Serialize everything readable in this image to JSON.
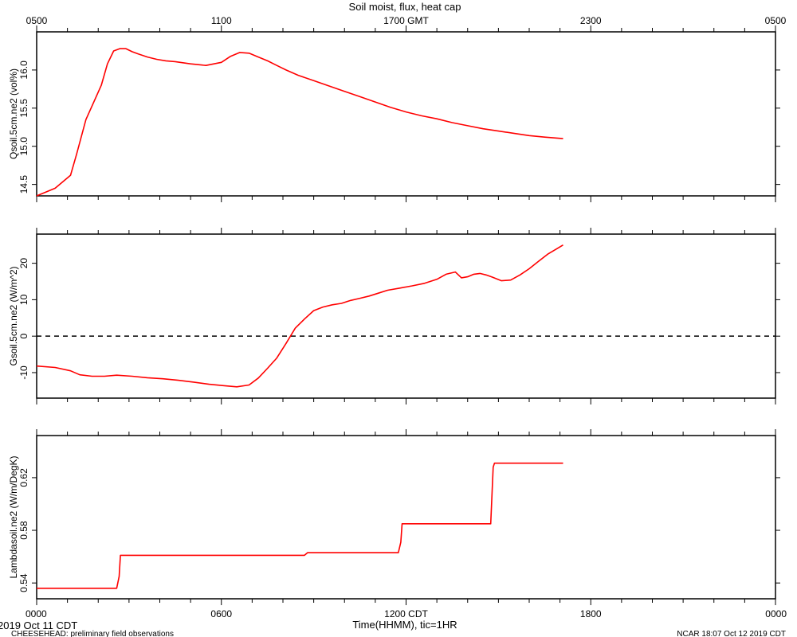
{
  "chart_data": [
    {
      "type": "line",
      "title": "Soil moist, flux, heat cap",
      "top_axis": {
        "tick_labels": [
          "0500",
          "1100",
          "1700 GMT",
          "2300",
          "0500"
        ],
        "tick_hours": [
          5,
          11,
          17,
          23,
          29
        ]
      },
      "xlabel": "",
      "ylabel": "Qsoil.5cm.ne2 (vol%)",
      "ylim": [
        14.35,
        16.5
      ],
      "yticks": [
        14.5,
        15.0,
        15.5,
        16.0
      ],
      "ytick_labels": [
        "14.5",
        "15.0",
        "15.5",
        "16.0"
      ],
      "color": "#ff0000",
      "series": [
        {
          "x": [
            0.0,
            0.6,
            1.1,
            1.3,
            1.6,
            1.9,
            2.1,
            2.3,
            2.5,
            2.7,
            2.9,
            3.1,
            3.3,
            3.6,
            3.9,
            4.2,
            4.5,
            5.0,
            5.5,
            6.0,
            6.3,
            6.6,
            6.9,
            7.2,
            7.5,
            7.8,
            8.1,
            8.5,
            9.0,
            9.5,
            10.0,
            10.5,
            11.0,
            11.5,
            12.0,
            12.5,
            13.0,
            13.5,
            14.0,
            14.5,
            15.0,
            15.5,
            16.0,
            16.5,
            17.1
          ],
          "y": [
            14.35,
            14.45,
            14.62,
            14.9,
            15.35,
            15.62,
            15.8,
            16.08,
            16.25,
            16.28,
            16.28,
            16.24,
            16.21,
            16.17,
            16.14,
            16.12,
            16.11,
            16.08,
            16.06,
            16.1,
            16.18,
            16.23,
            16.22,
            16.17,
            16.12,
            16.06,
            16.0,
            15.93,
            15.86,
            15.79,
            15.72,
            15.65,
            15.58,
            15.51,
            15.45,
            15.4,
            15.36,
            15.31,
            15.27,
            15.23,
            15.2,
            15.17,
            15.14,
            15.12,
            15.1
          ]
        }
      ]
    },
    {
      "type": "line",
      "title": "",
      "xlabel": "",
      "ylabel": "Gsoil.5cm.ne2 (W/m^2)",
      "ylim": [
        -17,
        28
      ],
      "yticks": [
        -10,
        0,
        10,
        20
      ],
      "ytick_labels": [
        "-10",
        "0",
        "10",
        "20"
      ],
      "zero_line": true,
      "color": "#ff0000",
      "series": [
        {
          "x": [
            0.0,
            0.6,
            1.1,
            1.4,
            1.8,
            2.2,
            2.6,
            3.1,
            3.6,
            4.1,
            4.6,
            5.1,
            5.6,
            6.1,
            6.5,
            6.9,
            7.2,
            7.5,
            7.8,
            8.1,
            8.4,
            8.7,
            9.0,
            9.3,
            9.6,
            9.9,
            10.2,
            10.5,
            10.8,
            11.1,
            11.4,
            11.8,
            12.2,
            12.6,
            13.0,
            13.3,
            13.6,
            13.8,
            14.0,
            14.2,
            14.4,
            14.6,
            14.8,
            15.1,
            15.4,
            15.7,
            16.0,
            16.3,
            16.6,
            16.9,
            17.1
          ],
          "y": [
            -8.2,
            -8.6,
            -9.5,
            -10.6,
            -11.0,
            -11.0,
            -10.7,
            -11.0,
            -11.4,
            -11.7,
            -12.1,
            -12.6,
            -13.2,
            -13.6,
            -13.9,
            -13.4,
            -11.5,
            -8.8,
            -6.0,
            -2.0,
            2.2,
            4.7,
            7.0,
            8.0,
            8.6,
            9.0,
            9.8,
            10.4,
            11.0,
            11.8,
            12.6,
            13.2,
            13.8,
            14.5,
            15.6,
            17.0,
            17.6,
            16.0,
            16.3,
            17.0,
            17.2,
            16.8,
            16.2,
            15.2,
            15.4,
            16.8,
            18.5,
            20.5,
            22.5,
            24.0,
            25.0
          ]
        }
      ]
    },
    {
      "type": "line",
      "title": "",
      "xlabel": "Time(HHMM), tic=1HR",
      "ylabel": "Lambdasoil.ne2 (W/m/DegK)",
      "ylim": [
        0.528,
        0.652
      ],
      "yticks": [
        0.54,
        0.58,
        0.62
      ],
      "ytick_labels": [
        "0.54",
        "0.58",
        "0.62"
      ],
      "bottom_axis": {
        "tick_labels": [
          "0000",
          "0600",
          "1200 CDT",
          "1800",
          "0000"
        ],
        "tick_hours": [
          0,
          6,
          12,
          18,
          24
        ]
      },
      "color": "#ff0000",
      "series": [
        {
          "x": [
            0.0,
            2.6,
            2.68,
            2.72,
            8.7,
            8.8,
            11.75,
            11.83,
            11.87,
            14.75,
            14.83,
            14.87,
            17.1
          ],
          "y": [
            0.536,
            0.536,
            0.545,
            0.561,
            0.561,
            0.563,
            0.563,
            0.571,
            0.585,
            0.585,
            0.628,
            0.631,
            0.631
          ]
        }
      ]
    }
  ],
  "footer": {
    "date_left": "2019 Oct 11 CDT",
    "note_left": "CHEESEHEAD: preliminary field observations",
    "note_right": "NCAR 18:07 Oct 12 2019 CDT"
  }
}
